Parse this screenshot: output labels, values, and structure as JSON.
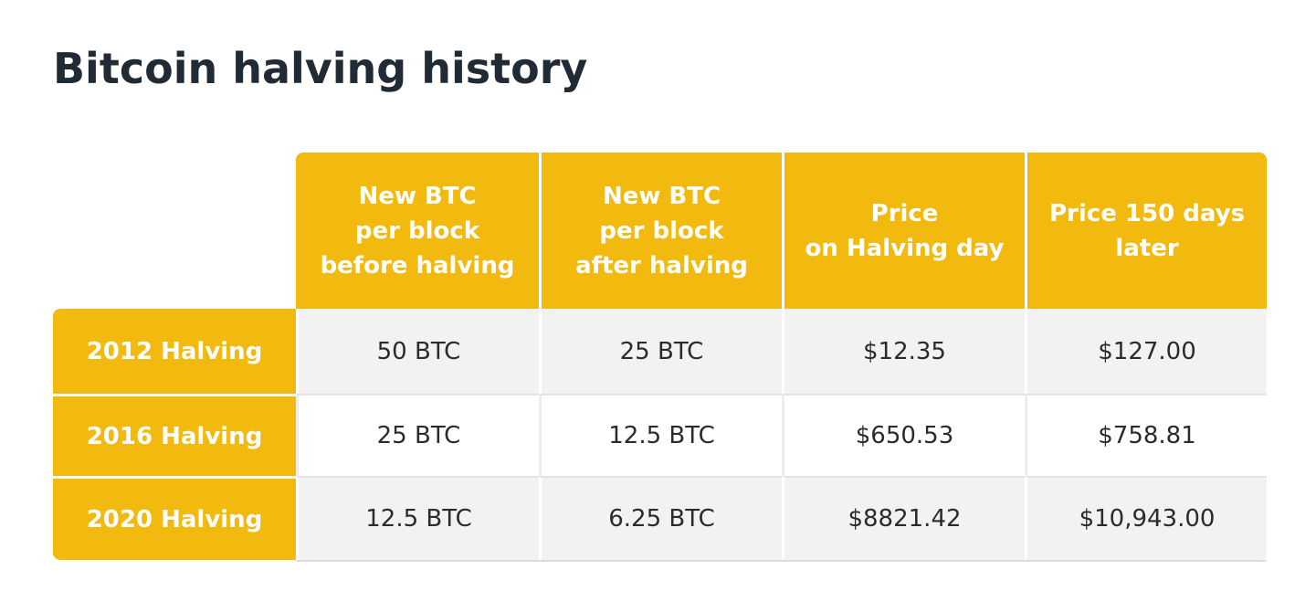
{
  "title": "Bitcoin halving history",
  "colors": {
    "accent": "#f2b90f",
    "title_text": "#212b35",
    "shaded_row": "#f2f2f2"
  },
  "table": {
    "columns": [
      "New BTC\nper block\nbefore halving",
      "New BTC\nper block\nafter halving",
      "Price\non Halving day",
      "Price 150 days\nlater"
    ],
    "rows": [
      {
        "label": "2012 Halving",
        "cells": [
          "50 BTC",
          "25 BTC",
          "$12.35",
          "$127.00"
        ]
      },
      {
        "label": "2016 Halving",
        "cells": [
          "25 BTC",
          "12.5 BTC",
          "$650.53",
          "$758.81"
        ]
      },
      {
        "label": "2020 Halving",
        "cells": [
          "12.5 BTC",
          "6.25 BTC",
          "$8821.42",
          "$10,943.00"
        ]
      }
    ]
  }
}
